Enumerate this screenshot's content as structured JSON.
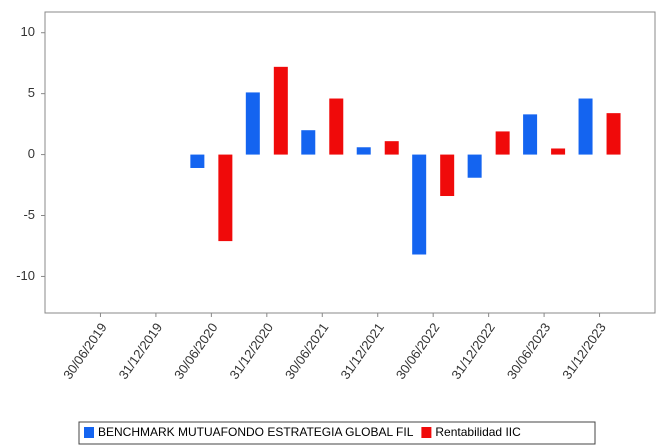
{
  "chart_data": {
    "type": "bar",
    "categories": [
      "30/06/2019",
      "31/12/2019",
      "30/06/2020",
      "31/12/2020",
      "30/06/2021",
      "31/12/2021",
      "30/06/2022",
      "31/12/2022",
      "30/06/2023",
      "31/12/2023"
    ],
    "series": [
      {
        "name": "BENCHMARK MUTUAFONDO ESTRATEGIA GLOBAL FIL",
        "color": "#1464f0",
        "values": [
          null,
          null,
          -1.1,
          5.1,
          2.0,
          0.6,
          -8.2,
          -1.9,
          3.3,
          4.6
        ]
      },
      {
        "name": "Rentabilidad IIC",
        "color": "#f00a0a",
        "values": [
          null,
          null,
          -7.1,
          7.2,
          4.6,
          1.1,
          -3.4,
          1.9,
          0.5,
          3.4
        ]
      }
    ],
    "ylim": [
      -13,
      11.7
    ],
    "yticks": [
      10,
      5,
      0,
      -5,
      -10
    ],
    "grid": false,
    "legend": "bottom"
  }
}
